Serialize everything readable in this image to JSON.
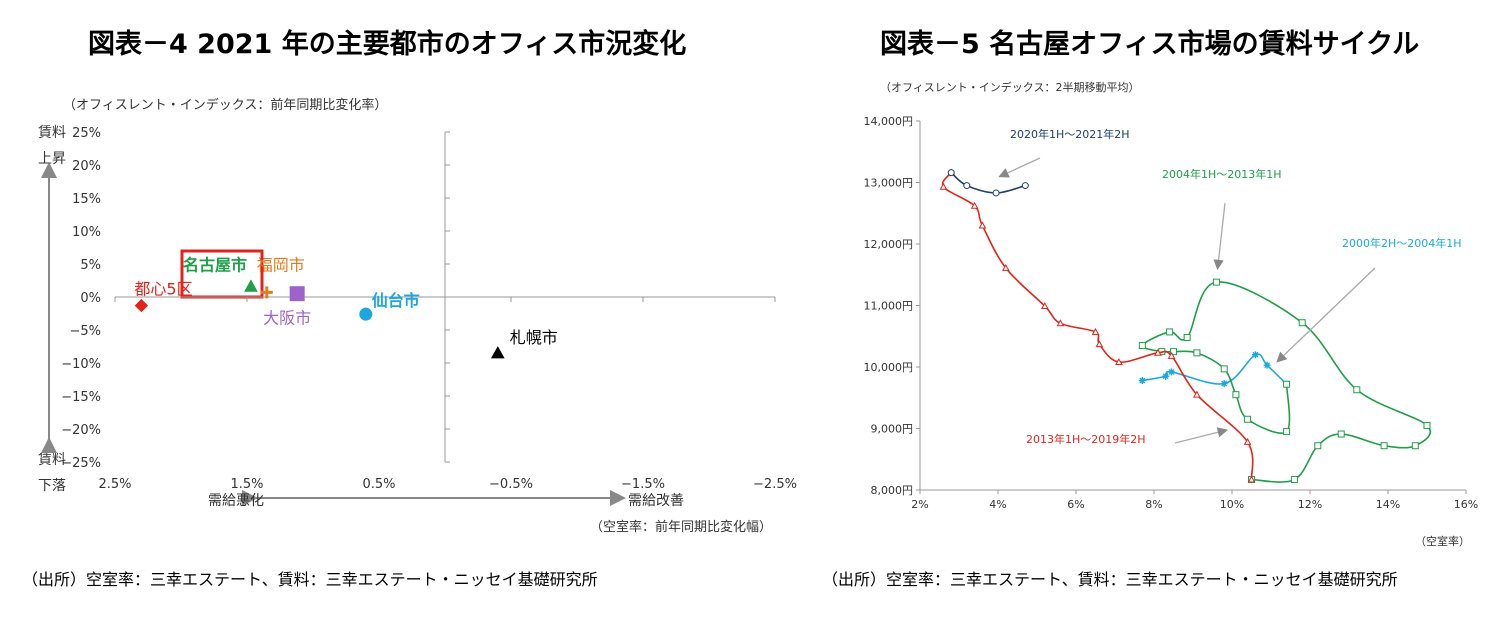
{
  "left": {
    "title": "図表－4  2021 年の主要都市のオフィス市況変化",
    "source": "（出所）空室率：三幸エステート、賃料：三幸エステート・ニッセイ基礎研究所",
    "ylabel_note": "（オフィスレント・インデックス：前年同期比変化率）",
    "y_top_label_1": "賃料",
    "y_top_label_2": "上昇",
    "y_bottom_label_1": "賃料",
    "y_bottom_label_2": "下落",
    "x_left_label": "需給悪化",
    "x_right_label": "需給改善",
    "xlabel_note": "（空室率：前年同期比変化幅）",
    "highlight_label": "名古屋市"
  },
  "right": {
    "title": "図表－5  名古屋オフィス市場の賃料サイクル",
    "source": "（出所）空室率：三幸エステート、賃料：三幸エステート・ニッセイ基礎研究所",
    "ylabel_note": "（オフィスレント・インデックス：2半期移動平均）",
    "xlabel_note": "（空室率）"
  },
  "chart_data": [
    {
      "type": "scatter",
      "title": "図表－4  2021 年の主要都市のオフィス市況変化",
      "xlabel": "（空室率：前年同期比変化幅）",
      "ylabel": "（オフィスレント・インデックス：前年同期比変化率）",
      "xlim": [
        2.5,
        -2.5
      ],
      "ylim": [
        -25,
        25
      ],
      "x_reversed": true,
      "x_ticks": [
        2.5,
        1.5,
        0.5,
        -0.5,
        -1.5,
        -2.5
      ],
      "x_tick_labels": [
        "2.5%",
        "1.5%",
        "0.5%",
        "−0.5%",
        "−1.5%",
        "−2.5%"
      ],
      "y_ticks": [
        25,
        20,
        15,
        10,
        5,
        0,
        -5,
        -10,
        -15,
        -20,
        -25
      ],
      "y_tick_labels": [
        "25%",
        "20%",
        "15%",
        "10%",
        "5%",
        "0%",
        "−5%",
        "−10%",
        "−15%",
        "−20%",
        "−25%"
      ],
      "grid": false,
      "points": [
        {
          "name": "都心5区",
          "x": 2.3,
          "y": -1.3,
          "marker": "diamond",
          "color": "#e0241b",
          "label_side": "upper-left"
        },
        {
          "name": "名古屋市",
          "x": 1.47,
          "y": 1.6,
          "marker": "triangle",
          "color": "#1f9e48",
          "label_side": "upper-left"
        },
        {
          "name": "福岡市",
          "x": 1.35,
          "y": 0.7,
          "marker": "plus",
          "color": "#e07b1f",
          "label_side": "upper-right"
        },
        {
          "name": "大阪市",
          "x": 1.12,
          "y": 0.5,
          "marker": "square",
          "color": "#9d63c9",
          "label_side": "lower-left"
        },
        {
          "name": "仙台市",
          "x": 0.6,
          "y": -2.6,
          "marker": "circle",
          "color": "#1ca8de",
          "label_side": "upper-right"
        },
        {
          "name": "札幌市",
          "x": -0.4,
          "y": -8.5,
          "marker": "triangle",
          "color": "#000000",
          "label_side": "upper-right"
        }
      ]
    },
    {
      "type": "line",
      "title": "図表－5  名古屋オフィス市場の賃料サイクル",
      "xlabel": "（空室率）",
      "ylabel": "（オフィスレント・インデックス：2半期移動平均）",
      "xlim": [
        2,
        16
      ],
      "ylim": [
        8000,
        14000
      ],
      "x_ticks": [
        2,
        4,
        6,
        8,
        10,
        12,
        14,
        16
      ],
      "x_tick_labels": [
        "2%",
        "4%",
        "6%",
        "8%",
        "10%",
        "12%",
        "14%",
        "16%"
      ],
      "y_ticks": [
        8000,
        9000,
        10000,
        11000,
        12000,
        13000,
        14000
      ],
      "y_tick_labels": [
        "8,000円",
        "9,000円",
        "10,000円",
        "11,000円",
        "12,000円",
        "13,000円",
        "14,000円"
      ],
      "grid": false,
      "series": [
        {
          "name": "2000年2H～2004年1H",
          "color": "#1ca8de",
          "marker": "star",
          "points": [
            [
              7.7,
              9780
            ],
            [
              8.3,
              9850
            ],
            [
              8.45,
              9920
            ],
            [
              9.8,
              9730
            ],
            [
              10.6,
              10200
            ],
            [
              10.9,
              10030
            ],
            [
              11.4,
              9720
            ]
          ]
        },
        {
          "name": "2004年1H～2013年1H",
          "color": "#1f9e48",
          "marker": "square",
          "points": [
            [
              11.4,
              9720
            ],
            [
              11.4,
              8950
            ],
            [
              10.4,
              9150
            ],
            [
              10.1,
              9550
            ],
            [
              9.8,
              9970
            ],
            [
              9.1,
              10230
            ],
            [
              8.5,
              10250
            ],
            [
              8.2,
              10250
            ],
            [
              7.7,
              10350
            ],
            [
              8.4,
              10570
            ],
            [
              8.85,
              10480
            ],
            [
              9.6,
              11380
            ],
            [
              11.8,
              10720
            ],
            [
              13.2,
              9630
            ],
            [
              15.0,
              9050
            ],
            [
              14.7,
              8720
            ],
            [
              13.9,
              8720
            ],
            [
              12.8,
              8910
            ],
            [
              12.2,
              8720
            ],
            [
              11.6,
              8170
            ],
            [
              10.5,
              8170
            ]
          ]
        },
        {
          "name": "2013年1H～2019年2H",
          "color": "#e0241b",
          "marker": "triangle",
          "points": [
            [
              10.5,
              8170
            ],
            [
              10.4,
              8780
            ],
            [
              9.1,
              9550
            ],
            [
              8.45,
              10180
            ],
            [
              8.1,
              10230
            ],
            [
              7.1,
              10080
            ],
            [
              6.6,
              10370
            ],
            [
              6.5,
              10570
            ],
            [
              5.6,
              10710
            ],
            [
              5.2,
              10990
            ],
            [
              4.2,
              11610
            ],
            [
              3.6,
              12300
            ],
            [
              3.4,
              12620
            ],
            [
              2.6,
              12930
            ],
            [
              2.8,
              13160
            ]
          ]
        },
        {
          "name": "2020年1H～2021年2H",
          "color": "#1f3e6e",
          "marker": "circle",
          "points": [
            [
              2.8,
              13160
            ],
            [
              3.2,
              12950
            ],
            [
              3.95,
              12830
            ],
            [
              4.7,
              12950
            ]
          ]
        }
      ]
    }
  ]
}
